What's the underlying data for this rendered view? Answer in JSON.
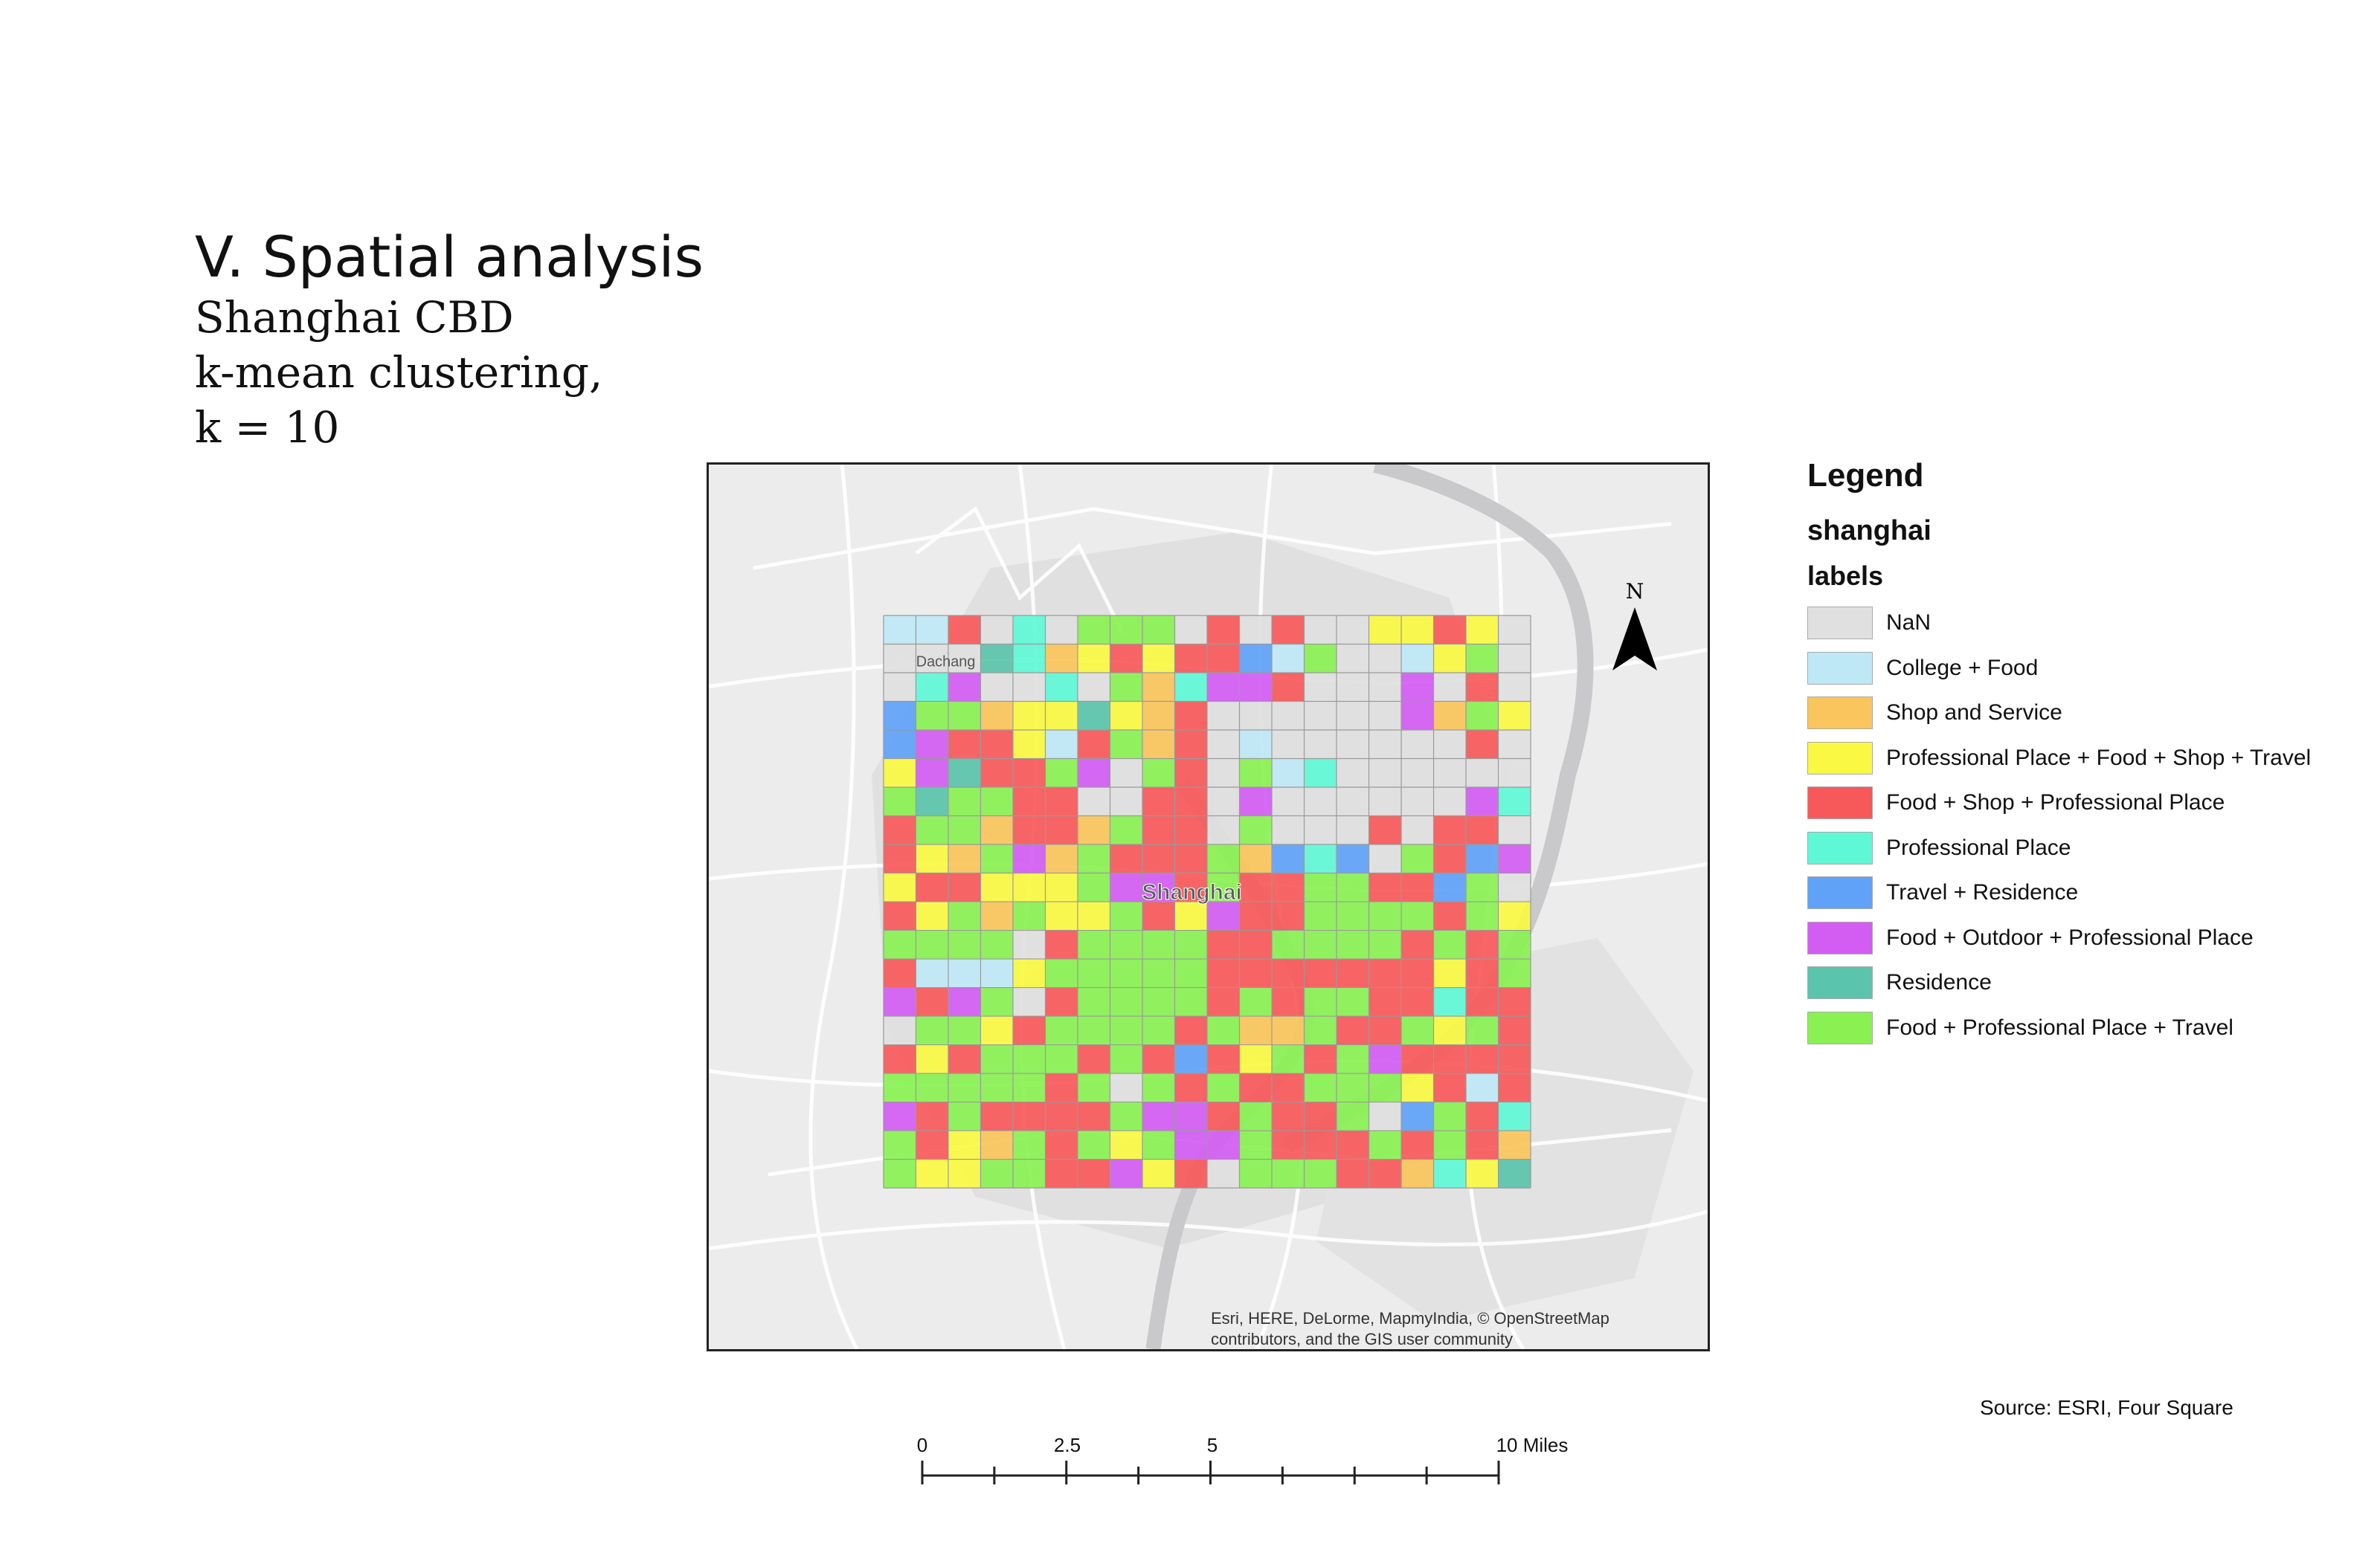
{
  "title": "V. Spatial analysis",
  "subtitle_lines": [
    "Shanghai CBD",
    "k-mean clustering,",
    "k = 10"
  ],
  "map": {
    "place_labels": [
      "Dachang",
      "Shanghai"
    ],
    "attribution_lines": [
      "Esri, HERE, DeLorme, MapmyIndia, © OpenStreetMap",
      "contributors, and the GIS user community"
    ],
    "north_label": "N",
    "grid_rows": [
      "BBEAFAJJJAEAEAADDEDA",
      "AAAIFCDEDEEGBJAABDJA",
      "AFHAAFAJCFHHEAAAHAEA",
      "GJJCDDIDCEAAAAAAHCJD",
      "GHEEDBEJCEABAAAAAAEA",
      "DHIEEJHAJEAJBFAAAAAA",
      "JIJJEEAAEEAHAAAAAAHF",
      "EJJCEECJEEAJAAAEAEEA",
      "EDCJHCJEEEJCGFGAJEGH",
      "DEEDDDJHHEJEEJJEEGJA",
      "EDJCJDDJEDHEEJJJJEJD",
      "JJJJAEJJJJEEJJJJEJEJ",
      "EBBBDJJJJJEEEEEEEDEJ",
      "HEHJAEJJJJEJEJJEEFEE",
      "AJJDEJJJJEJCCJEEJDJE",
      "EDEJJJEJEGEDJEJHEEEE",
      "JJJJJEJAJEJEEJJJDEBE",
      "HEJEEEEJHHEJEEJAGJEF",
      "JEDCJEJDJHHJEEEJEJEC",
      "JDDJJEEHDEAJJJEECFDI"
    ]
  },
  "legend": {
    "title": "Legend",
    "layer": "shanghai",
    "field": "labels",
    "items": [
      {
        "code": "A",
        "label": "NaN",
        "color": "#E0E0E0"
      },
      {
        "code": "B",
        "label": "College + Food",
        "color": "#BEE8F5"
      },
      {
        "code": "C",
        "label": "Shop and Service",
        "color": "#FAC55C"
      },
      {
        "code": "D",
        "label": "Professional Place + Food + Shop + Travel",
        "color": "#FAF843"
      },
      {
        "code": "E",
        "label": "Food + Shop + Professional Place",
        "color": "#F7595A"
      },
      {
        "code": "F",
        "label": "Professional Place",
        "color": "#5FF8D7"
      },
      {
        "code": "G",
        "label": "Travel + Residence",
        "color": "#5FA2F8"
      },
      {
        "code": "H",
        "label": "Food + Outdoor + Professional Place",
        "color": "#D35DF3"
      },
      {
        "code": "I",
        "label": "Residence",
        "color": "#5BC4AD"
      },
      {
        "code": "J",
        "label": "Food + Professional Place + Travel",
        "color": "#8AF152"
      }
    ]
  },
  "source": "Source: ESRI, Four Square",
  "scalebar": {
    "labels": [
      "0",
      "2.5",
      "5",
      "10 Miles"
    ],
    "values": [
      0,
      2.5,
      5,
      10
    ]
  }
}
